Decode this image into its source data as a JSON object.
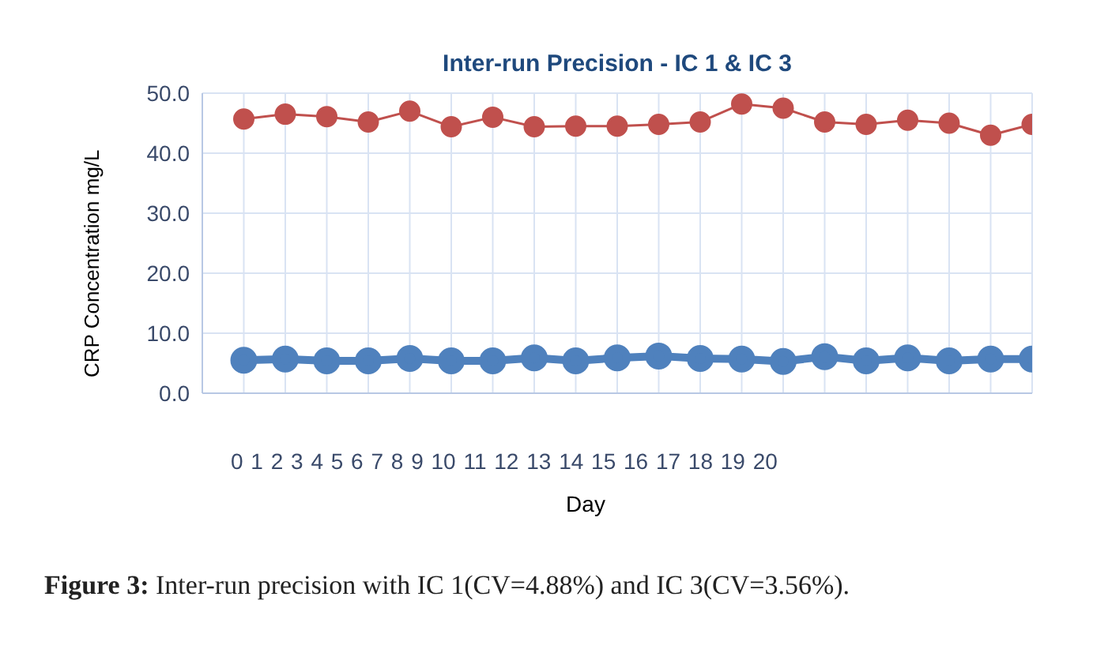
{
  "chart_data": {
    "type": "line",
    "title": "Inter-run Precision - IC 1 & IC 3",
    "xlabel": "Day",
    "ylabel": "CRP Concentration mg/L",
    "categories": [
      null,
      null,
      null,
      null,
      null,
      null,
      null,
      null,
      null,
      null,
      null,
      null,
      null,
      null,
      null,
      null,
      null,
      null,
      null,
      null
    ],
    "series": [
      {
        "color": "#c0504d",
        "values": [
          45.7,
          46.5,
          46.1,
          45.2,
          47.0,
          44.4,
          46.0,
          44.4,
          44.5,
          44.5,
          44.8,
          45.2,
          48.2,
          47.5,
          45.2,
          44.8,
          45.5,
          45.0,
          43.0,
          44.8
        ]
      },
      {
        "color": "#4f81bd",
        "values": [
          5.5,
          5.7,
          5.4,
          5.4,
          5.8,
          5.4,
          5.4,
          5.9,
          5.4,
          5.9,
          6.2,
          5.8,
          5.7,
          5.3,
          6.1,
          5.4,
          5.9,
          5.4,
          5.7,
          5.7
        ]
      }
    ],
    "ylim": [
      0,
      50
    ],
    "yticks": [
      {
        "value": 0,
        "label": "0.0"
      },
      {
        "value": 10,
        "label": "10.0"
      },
      {
        "value": 20,
        "label": "20.0"
      },
      {
        "value": 30,
        "label": "30.0"
      },
      {
        "value": 40,
        "label": "40.0"
      },
      {
        "value": 50,
        "label": "50.0"
      }
    ],
    "grid": true,
    "marker": "circle",
    "line_style": "solid",
    "annotations": [
      "0 1 2 3 4 5 6 7 8 9 10 11 12 13 14 15 16 17 18 19 20",
      "Figure 3: Inter-run precision with IC 1(CV=4.88%) and IC 3(CV=3.56%)."
    ]
  }
}
